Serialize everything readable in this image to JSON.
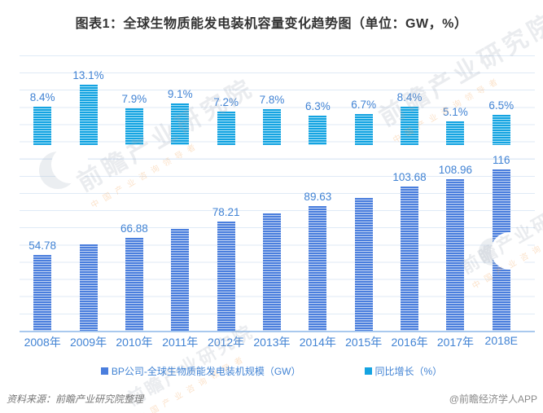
{
  "title": "图表1：全球生物质能发电装机容量变化趋势图（单位：GW，%）",
  "chart_data": {
    "type": "bar",
    "title": "图表1：全球生物质能发电装机容量变化趋势图（单位：GW，%）",
    "categories": [
      "2008年",
      "2009年",
      "2010年",
      "2011年",
      "2012年",
      "2013年",
      "2014年",
      "2015年",
      "2016年",
      "2017年",
      "2018E"
    ],
    "series": [
      {
        "name": "BP公司-全球生物质能发电装机规模（GW）",
        "unit": "GW",
        "color": "#4a7edd",
        "values": [
          54.78,
          61.95,
          66.88,
          72.97,
          78.21,
          84.31,
          89.63,
          95.63,
          103.68,
          108.96,
          116
        ],
        "labels": [
          "54.78",
          "",
          "66.88",
          "",
          "78.21",
          "",
          "89.63",
          "",
          "103.68",
          "108.96",
          "116"
        ]
      },
      {
        "name": "同比增长（%）",
        "unit": "%",
        "color": "#14a3e1",
        "values": [
          8.4,
          13.1,
          7.9,
          9.1,
          7.2,
          7.8,
          6.3,
          6.7,
          8.4,
          5.1,
          6.5
        ],
        "labels": [
          "8.4%",
          "13.1%",
          "7.9%",
          "9.1%",
          "7.2%",
          "7.8%",
          "6.3%",
          "6.7%",
          "8.4%",
          "5.1%",
          "6.5%"
        ]
      }
    ],
    "xlabel": "",
    "ylabel": "",
    "value_axis_labels_visible": false,
    "grid": true,
    "legend_position": "bottom",
    "label_text_color": "#4183d4"
  },
  "legend": {
    "capacity_label": "BP公司-全球生物质能发电装机规模（GW）",
    "growth_label": "同比增长（%）"
  },
  "footer": {
    "source": "资料来源：前瞻产业研究院整理",
    "credit": "@前瞻经济学人APP"
  },
  "watermark": {
    "text": "前瞻产业研究院",
    "subtext": "中国产业咨询领导者"
  }
}
